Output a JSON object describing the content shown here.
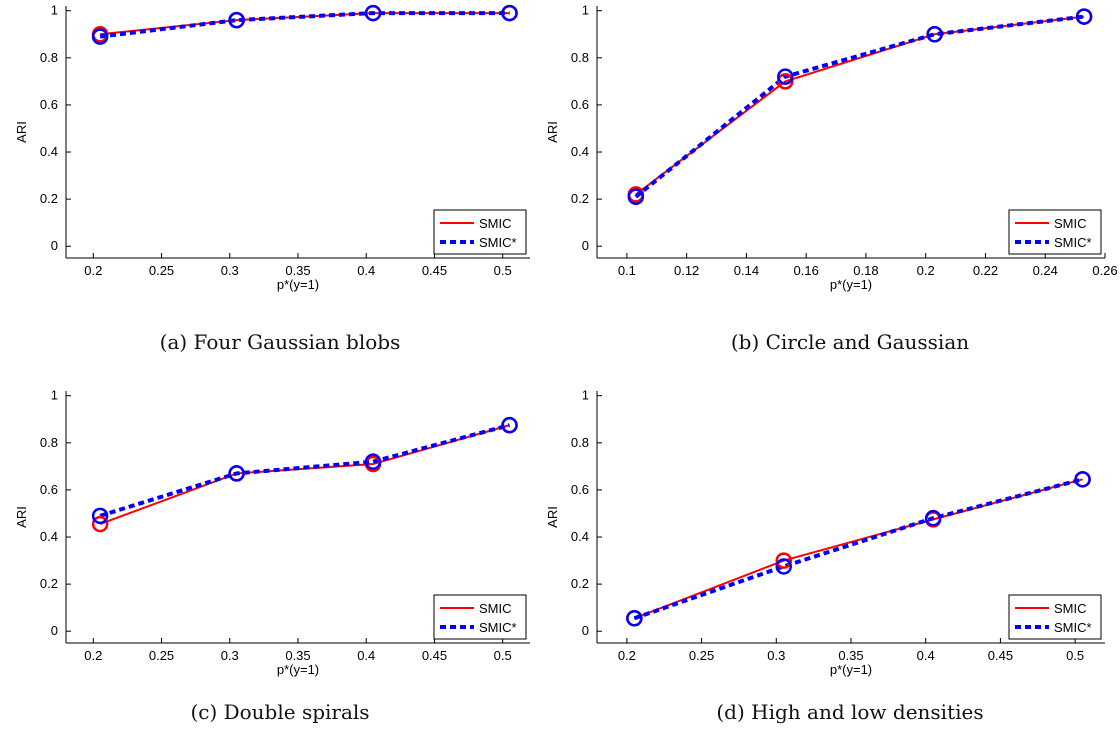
{
  "chart_data": [
    {
      "type": "line",
      "caption": "(a) Four Gaussian blobs",
      "xlabel": "p*(y=1)",
      "ylabel": "ARI",
      "xlim": [
        0.18,
        0.52
      ],
      "ylim": [
        -0.05,
        1.02
      ],
      "xticks": [
        "0.2",
        "0.25",
        "0.3",
        "0.35",
        "0.4",
        "0.45",
        "0.5"
      ],
      "yticks": [
        "0",
        "0.2",
        "0.4",
        "0.6",
        "0.8",
        "1"
      ],
      "x": [
        0.205,
        0.305,
        0.405,
        0.505
      ],
      "series": [
        {
          "name": "SMIC",
          "color": "#ff0000",
          "style": "solid",
          "values": [
            0.9,
            0.96,
            0.99,
            0.99
          ]
        },
        {
          "name": "SMIC*",
          "color": "#0000ff",
          "style": "dashed",
          "values": [
            0.89,
            0.96,
            0.99,
            0.99
          ]
        }
      ],
      "legend": "bottom-right"
    },
    {
      "type": "line",
      "caption": "(b) Circle and Gaussian",
      "xlabel": "p*(y=1)",
      "ylabel": "ARI",
      "xlim": [
        0.09,
        0.26
      ],
      "ylim": [
        -0.05,
        1.02
      ],
      "xticks": [
        "0.1",
        "0.12",
        "0.14",
        "0.16",
        "0.18",
        "0.2",
        "0.22",
        "0.24",
        "0.26"
      ],
      "yticks": [
        "0",
        "0.2",
        "0.4",
        "0.6",
        "0.8",
        "1"
      ],
      "x": [
        0.103,
        0.153,
        0.203,
        0.253
      ],
      "series": [
        {
          "name": "SMIC",
          "color": "#ff0000",
          "style": "solid",
          "values": [
            0.22,
            0.7,
            0.9,
            0.975
          ]
        },
        {
          "name": "SMIC*",
          "color": "#0000ff",
          "style": "dashed",
          "values": [
            0.21,
            0.72,
            0.9,
            0.975
          ]
        }
      ],
      "legend": "bottom-right"
    },
    {
      "type": "line",
      "caption": "(c) Double spirals",
      "xlabel": "p*(y=1)",
      "ylabel": "ARI",
      "xlim": [
        0.18,
        0.52
      ],
      "ylim": [
        -0.05,
        1.02
      ],
      "xticks": [
        "0.2",
        "0.25",
        "0.3",
        "0.35",
        "0.4",
        "0.45",
        "0.5"
      ],
      "yticks": [
        "0",
        "0.2",
        "0.4",
        "0.6",
        "0.8",
        "1"
      ],
      "x": [
        0.205,
        0.305,
        0.405,
        0.505
      ],
      "series": [
        {
          "name": "SMIC",
          "color": "#ff0000",
          "style": "solid",
          "values": [
            0.455,
            0.67,
            0.71,
            0.875
          ]
        },
        {
          "name": "SMIC*",
          "color": "#0000ff",
          "style": "dashed",
          "values": [
            0.49,
            0.67,
            0.72,
            0.875
          ]
        }
      ],
      "legend": "bottom-right"
    },
    {
      "type": "line",
      "caption": "(d) High and low densities",
      "xlabel": "p*(y=1)",
      "ylabel": "ARI",
      "xlim": [
        0.18,
        0.52
      ],
      "ylim": [
        -0.05,
        1.02
      ],
      "xticks": [
        "0.2",
        "0.25",
        "0.3",
        "0.35",
        "0.4",
        "0.45",
        "0.5"
      ],
      "yticks": [
        "0",
        "0.2",
        "0.4",
        "0.6",
        "0.8",
        "1"
      ],
      "x": [
        0.205,
        0.305,
        0.405,
        0.505
      ],
      "series": [
        {
          "name": "SMIC",
          "color": "#ff0000",
          "style": "solid",
          "values": [
            0.055,
            0.3,
            0.475,
            0.645
          ]
        },
        {
          "name": "SMIC*",
          "color": "#0000ff",
          "style": "dashed",
          "values": [
            0.055,
            0.275,
            0.48,
            0.645
          ]
        }
      ],
      "legend": "bottom-right"
    }
  ]
}
